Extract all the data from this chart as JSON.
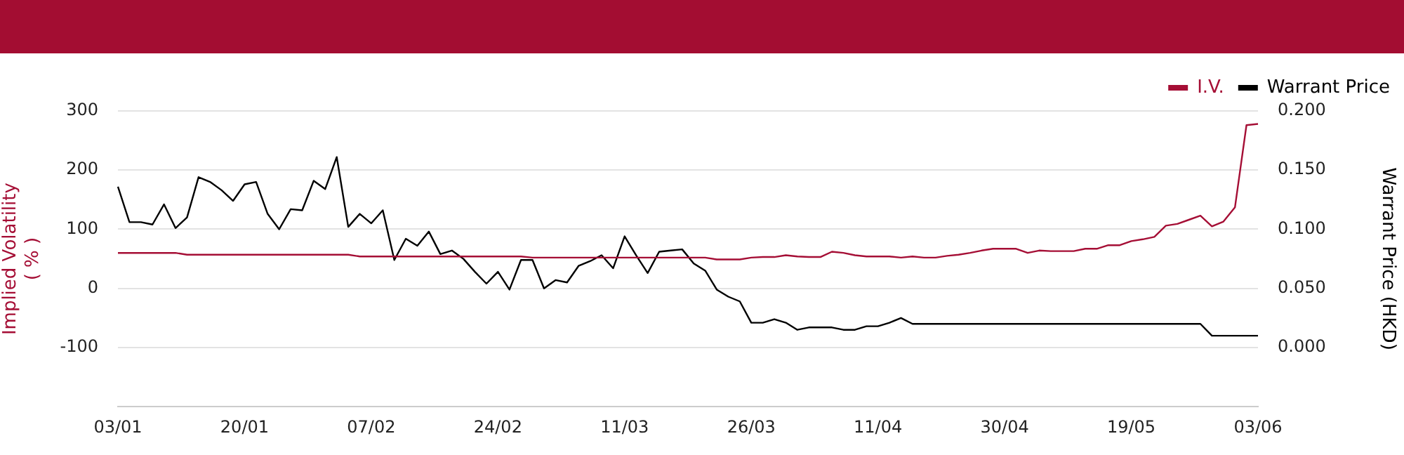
{
  "chart_data": {
    "type": "line",
    "categories": [
      "03/01",
      null,
      null,
      null,
      null,
      null,
      null,
      null,
      null,
      null,
      null,
      "20/01",
      null,
      null,
      null,
      null,
      null,
      null,
      null,
      null,
      null,
      null,
      "07/02",
      null,
      null,
      null,
      null,
      null,
      null,
      null,
      null,
      null,
      null,
      "24/02",
      null,
      null,
      null,
      null,
      null,
      null,
      null,
      null,
      null,
      null,
      "11/03",
      null,
      null,
      null,
      null,
      null,
      null,
      null,
      null,
      null,
      null,
      "26/03",
      null,
      null,
      null,
      null,
      null,
      null,
      null,
      null,
      null,
      null,
      "11/04",
      null,
      null,
      null,
      null,
      null,
      null,
      null,
      null,
      null,
      null,
      "30/04",
      null,
      null,
      null,
      null,
      null,
      null,
      null,
      null,
      null,
      null,
      "19/05",
      null,
      null,
      null,
      null,
      null,
      null,
      null,
      null,
      null,
      null,
      "03/06"
    ],
    "series": [
      {
        "name": "I.V.",
        "color": "#a50e35",
        "values": [
          60,
          60,
          60,
          60,
          60,
          60,
          57,
          57,
          57,
          57,
          57,
          57,
          57,
          57,
          57,
          57,
          57,
          57,
          57,
          57,
          57,
          54,
          54,
          54,
          54,
          54,
          54,
          54,
          54,
          54,
          54,
          54,
          54,
          54,
          54,
          54,
          52,
          52,
          52,
          52,
          52,
          52,
          52,
          52,
          52,
          52,
          52,
          52,
          52,
          52,
          52,
          52,
          49,
          49,
          49,
          52,
          53,
          53,
          56,
          54,
          53,
          53,
          62,
          60,
          56,
          54,
          54,
          54,
          52,
          54,
          52,
          52,
          55,
          57,
          60,
          64,
          67,
          67,
          67,
          60,
          64,
          63,
          63,
          63,
          67,
          67,
          73,
          73,
          80,
          83,
          87,
          106,
          109,
          116,
          123,
          105,
          113,
          137,
          276,
          278
        ]
      },
      {
        "name": "Warrant Price",
        "color": "#000000",
        "axis": "y2",
        "values": [
          0.136,
          0.106,
          0.106,
          0.104,
          0.121,
          0.101,
          0.11,
          0.144,
          0.14,
          0.133,
          0.124,
          0.138,
          0.14,
          0.113,
          0.1,
          0.117,
          0.116,
          0.141,
          0.134,
          0.161,
          0.102,
          0.113,
          0.105,
          0.116,
          0.074,
          0.092,
          0.086,
          0.098,
          0.079,
          0.082,
          0.075,
          0.064,
          0.054,
          0.064,
          0.049,
          0.074,
          0.074,
          0.05,
          0.057,
          0.055,
          0.069,
          0.073,
          0.078,
          0.067,
          0.094,
          0.078,
          0.063,
          0.081,
          0.082,
          0.083,
          0.071,
          0.065,
          0.049,
          0.043,
          0.039,
          0.021,
          0.021,
          0.024,
          0.021,
          0.015,
          0.017,
          0.017,
          0.017,
          0.015,
          0.015,
          0.018,
          0.018,
          0.021,
          0.025,
          0.02,
          0.02,
          0.02,
          0.02,
          0.02,
          0.02,
          0.02,
          0.02,
          0.02,
          0.02,
          0.02,
          0.02,
          0.02,
          0.02,
          0.02,
          0.02,
          0.02,
          0.02,
          0.02,
          0.02,
          0.02,
          0.02,
          0.02,
          0.02,
          0.02,
          0.02,
          0.01,
          0.01,
          0.01,
          0.01,
          0.01
        ]
      }
    ],
    "ylabel": "Implied Volatility\n( % )",
    "y2label": "Warrant Price (HKD)",
    "ylim": [
      -200,
      300
    ],
    "yticks": [
      -100,
      0,
      100,
      200,
      300
    ],
    "y2lim": [
      -0.05,
      0.2
    ],
    "y2ticks": [
      {
        "value": 0,
        "label": "0.000"
      },
      {
        "value": 0.05,
        "label": "0.050"
      },
      {
        "value": 0.1,
        "label": "0.100"
      },
      {
        "value": 0.15,
        "label": "0.150"
      },
      {
        "value": 0.2,
        "label": "0.200"
      }
    ],
    "grid": "y",
    "legend": "top right",
    "marker": "none",
    "line_style": "solid"
  }
}
